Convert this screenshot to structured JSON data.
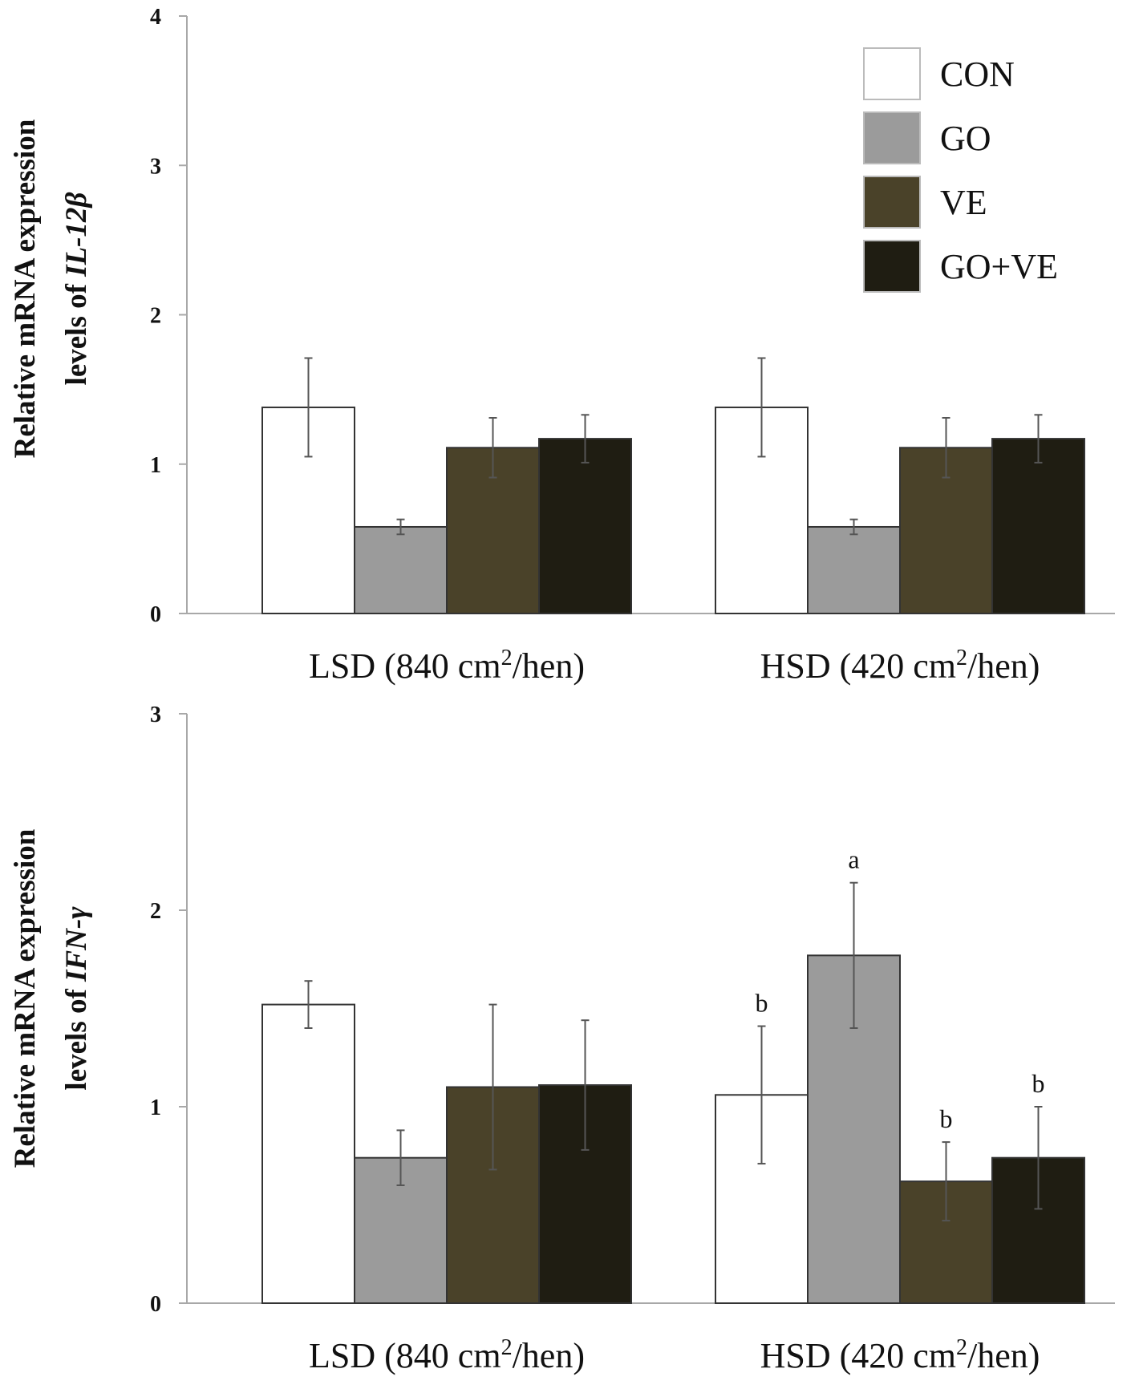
{
  "colors": {
    "CON": "#ffffff",
    "GO": "#9b9b9b",
    "VE": "#4a4229",
    "GO+VE": "#1f1d12"
  },
  "chart_data": [
    {
      "type": "bar",
      "categories": [
        "LSD (840 cm²/hen)",
        "HSD (420 cm²/hen)"
      ],
      "category_parts": [
        {
          "pre": "LSD (840 cm",
          "sup": "2",
          "post": "/hen)"
        },
        {
          "pre": "HSD (420 cm",
          "sup": "2",
          "post": "/hen)"
        }
      ],
      "ylabel_line1": "Relative mRNA expression",
      "ylabel_line2_pre": "levels of ",
      "ylabel_line2_gene": "IL-12β",
      "ylim": [
        0,
        4
      ],
      "yticks": [
        "0",
        "1",
        "2",
        "3",
        "4"
      ],
      "legend_position": "top-right",
      "legend": [
        "CON",
        "GO",
        "VE",
        "GO+VE"
      ],
      "series": [
        {
          "name": "CON",
          "values": [
            1.38,
            1.38
          ],
          "errors": [
            0.33,
            0.33
          ],
          "labels": [
            "",
            ""
          ]
        },
        {
          "name": "GO",
          "values": [
            0.58,
            0.58
          ],
          "errors": [
            0.05,
            0.05
          ],
          "labels": [
            "",
            ""
          ]
        },
        {
          "name": "VE",
          "values": [
            1.11,
            1.11
          ],
          "errors": [
            0.2,
            0.2
          ],
          "labels": [
            "",
            ""
          ]
        },
        {
          "name": "GO+VE",
          "values": [
            1.17,
            1.17
          ],
          "errors": [
            0.16,
            0.16
          ],
          "labels": [
            "",
            ""
          ]
        }
      ]
    },
    {
      "type": "bar",
      "categories": [
        "LSD (840 cm²/hen)",
        "HSD (420 cm²/hen)"
      ],
      "category_parts": [
        {
          "pre": "LSD (840 cm",
          "sup": "2",
          "post": "/hen)"
        },
        {
          "pre": "HSD (420 cm",
          "sup": "2",
          "post": "/hen)"
        }
      ],
      "ylabel_line1": "Relative mRNA expression",
      "ylabel_line2_pre": "levels of ",
      "ylabel_line2_gene": "IFN-γ",
      "ylim": [
        0,
        3
      ],
      "yticks": [
        "0",
        "1",
        "2",
        "3"
      ],
      "series": [
        {
          "name": "CON",
          "values": [
            1.52,
            1.06
          ],
          "errors": [
            0.12,
            0.35
          ],
          "labels": [
            "",
            "b"
          ]
        },
        {
          "name": "GO",
          "values": [
            0.74,
            1.77
          ],
          "errors": [
            0.14,
            0.37
          ],
          "labels": [
            "",
            "a"
          ]
        },
        {
          "name": "VE",
          "values": [
            1.1,
            0.62
          ],
          "errors": [
            0.42,
            0.2
          ],
          "labels": [
            "",
            "b"
          ]
        },
        {
          "name": "GO+VE",
          "values": [
            1.11,
            0.74
          ],
          "errors": [
            0.33,
            0.26
          ],
          "labels": [
            "",
            "b"
          ]
        }
      ]
    }
  ]
}
